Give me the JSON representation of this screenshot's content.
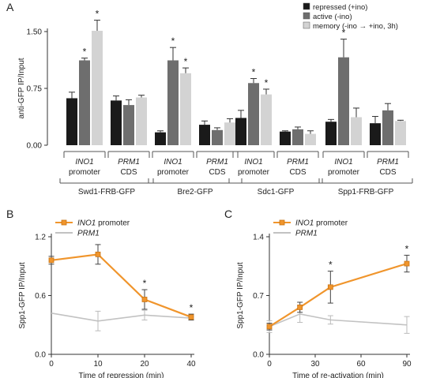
{
  "chart_data": [
    {
      "panel": "A",
      "type": "bar",
      "ylabel": "anti-GFP IP/Input",
      "ylim": [
        0,
        1.5
      ],
      "yticks": [
        "0.00",
        "0.75",
        "1.50"
      ],
      "legend_position": "top-right",
      "series": [
        {
          "name": "repressed (+ino)",
          "color": "#1a1a1a"
        },
        {
          "name": "active (-ino)",
          "color": "#6e6e6e"
        },
        {
          "name": "memory (-ino → +ino, 3h)",
          "color": "#d3d3d3"
        }
      ],
      "groups": [
        {
          "name": "Swd1-FRB-GFP",
          "loci": [
            {
              "gene": "INO1",
              "region": "promoter",
              "values": [
                0.62,
                1.12,
                1.51
              ],
              "errors": [
                0.08,
                0.03,
                0.14
              ],
              "sig": [
                false,
                true,
                true
              ]
            },
            {
              "gene": "PRM1",
              "region": "CDS",
              "values": [
                0.59,
                0.53,
                0.63
              ],
              "errors": [
                0.06,
                0.07,
                0.03
              ],
              "sig": [
                false,
                false,
                false
              ]
            }
          ]
        },
        {
          "name": "Bre2-GFP",
          "loci": [
            {
              "gene": "INO1",
              "region": "promoter",
              "values": [
                0.17,
                1.12,
                0.95
              ],
              "errors": [
                0.02,
                0.17,
                0.07
              ],
              "sig": [
                false,
                true,
                true
              ]
            },
            {
              "gene": "PRM1",
              "region": "CDS",
              "values": [
                0.27,
                0.2,
                0.3
              ],
              "errors": [
                0.05,
                0.03,
                0.05
              ],
              "sig": [
                false,
                false,
                false
              ]
            }
          ]
        },
        {
          "name": "Sdc1-GFP",
          "loci": [
            {
              "gene": "INO1",
              "region": "promoter",
              "values": [
                0.36,
                0.82,
                0.67
              ],
              "errors": [
                0.1,
                0.06,
                0.07
              ],
              "sig": [
                false,
                true,
                true
              ]
            },
            {
              "gene": "PRM1",
              "region": "CDS",
              "values": [
                0.18,
                0.21,
                0.15
              ],
              "errors": [
                0.01,
                0.03,
                0.04
              ],
              "sig": [
                false,
                false,
                false
              ]
            }
          ]
        },
        {
          "name": "Spp1-FRB-GFP",
          "loci": [
            {
              "gene": "INO1",
              "region": "promoter",
              "values": [
                0.31,
                1.16,
                0.37
              ],
              "errors": [
                0.03,
                0.24,
                0.12
              ],
              "sig": [
                false,
                true,
                false
              ]
            },
            {
              "gene": "PRM1",
              "region": "CDS",
              "values": [
                0.29,
                0.46,
                0.32
              ],
              "errors": [
                0.09,
                0.09,
                0.01
              ],
              "sig": [
                false,
                false,
                false
              ]
            }
          ]
        }
      ]
    },
    {
      "panel": "B",
      "type": "line",
      "xlabel": "Time of repression (min)",
      "ylabel": "Spp1-GFP IP/Input",
      "xlim": [
        0,
        40
      ],
      "ylim": [
        0,
        1.2
      ],
      "xticks": [
        "0",
        "10",
        "20",
        "40"
      ],
      "yticks": [
        "0.0",
        "0.6",
        "1.2"
      ],
      "legend_position": "top-left",
      "x": [
        0,
        10,
        20,
        40
      ],
      "series": [
        {
          "gene": "INO1",
          "suffix": " promoter",
          "color": "#f0952c",
          "values": [
            0.96,
            1.02,
            0.56,
            0.38
          ],
          "errors": [
            0.04,
            0.1,
            0.1,
            0.03
          ],
          "sig": [
            false,
            false,
            true,
            true
          ]
        },
        {
          "gene": "PRM1",
          "suffix": "",
          "color": "#c2c2c2",
          "values": [
            0.42,
            0.34,
            0.4,
            0.37
          ],
          "errors": [
            0.0,
            0.1,
            0.05,
            0.02
          ],
          "sig": [
            false,
            false,
            false,
            false
          ]
        }
      ]
    },
    {
      "panel": "C",
      "type": "line",
      "xlabel": "Time of re-activation (min)",
      "ylabel": "Spp1-GFP IP/Input",
      "xlim": [
        0,
        90
      ],
      "ylim": [
        0,
        1.4
      ],
      "xticks": [
        "0",
        "30",
        "60",
        "90"
      ],
      "yticks": [
        "0.0",
        "0.7",
        "1.4"
      ],
      "legend_position": "top-left",
      "x": [
        0,
        20,
        40,
        90
      ],
      "series": [
        {
          "gene": "INO1",
          "suffix": " promoter",
          "color": "#f0952c",
          "values": [
            0.33,
            0.56,
            0.8,
            1.08
          ],
          "errors": [
            0.04,
            0.06,
            0.19,
            0.1
          ],
          "sig": [
            false,
            false,
            true,
            true
          ]
        },
        {
          "gene": "PRM1",
          "suffix": "",
          "color": "#c2c2c2",
          "values": [
            0.33,
            0.48,
            0.41,
            0.35
          ],
          "errors": [
            0.07,
            0.1,
            0.05,
            0.1
          ],
          "sig": [
            false,
            false,
            false,
            false
          ]
        }
      ]
    }
  ]
}
